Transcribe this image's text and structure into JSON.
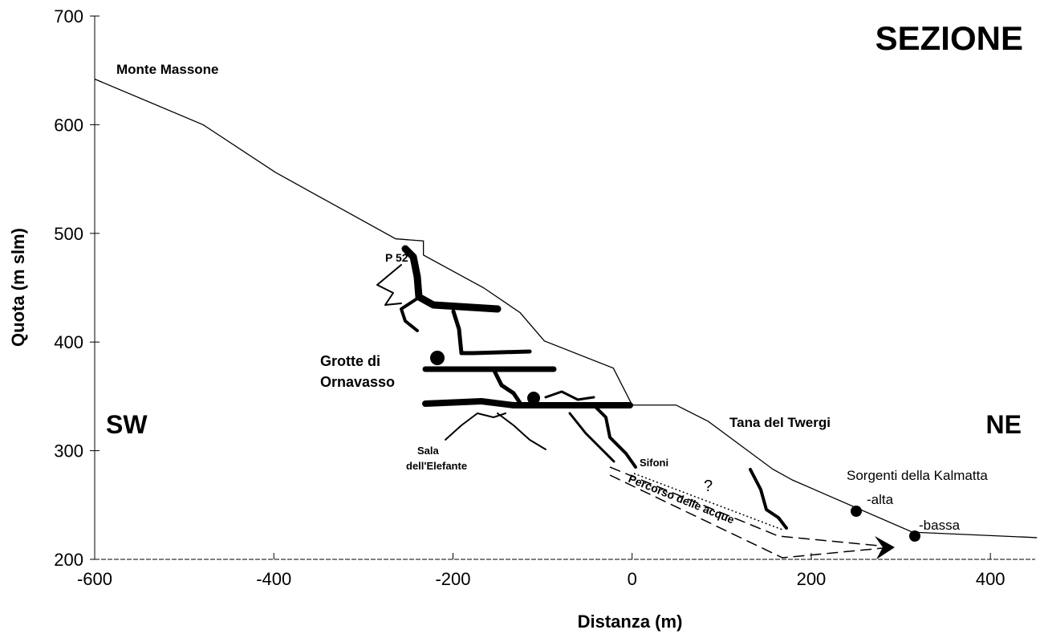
{
  "chart_data": {
    "type": "line",
    "title": "SEZIONE",
    "x_label": "Distanza (m)",
    "y_label": "Quota (m slm)",
    "x": [
      -600,
      -479,
      -398,
      -264,
      -233,
      -233,
      -166,
      -125,
      -98,
      -21,
      0,
      49,
      85,
      157,
      179,
      313,
      452
    ],
    "values": [
      642,
      600,
      556,
      495,
      493,
      480,
      450,
      427,
      401,
      376,
      342,
      342,
      327,
      283,
      273,
      225,
      220
    ],
    "color": "#000000",
    "xlim": [
      -600,
      450
    ],
    "ylim": [
      200,
      700
    ],
    "xticks": [
      -600,
      -400,
      -200,
      0,
      200,
      400
    ],
    "yticks": [
      200,
      300,
      400,
      500,
      600,
      700
    ],
    "annotations": [
      "Monte Massone",
      "P 52",
      "Grotte di",
      "Ornavasso",
      "SW",
      "NE",
      "Sala",
      "dell'Elefante",
      "Sifoni",
      "?",
      "Percorso delle acque",
      "Tana del Twergi",
      "Sorgenti della Kalmatta",
      "-alta",
      "-bassa"
    ]
  }
}
